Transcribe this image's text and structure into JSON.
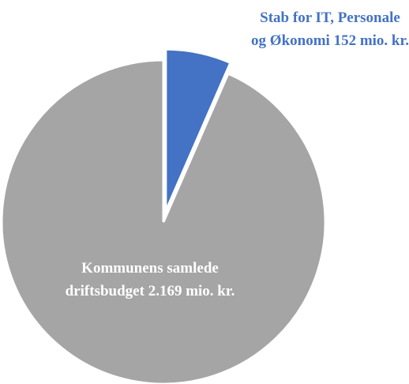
{
  "chart_data": {
    "type": "pie",
    "categories": [
      "Stab for IT, Personale og Økonomi",
      "Kommunens samlede driftsbudget"
    ],
    "values": [
      152,
      2169
    ],
    "value_labels": [
      "152 mio. kr.",
      "2.169 mio. kr."
    ],
    "colors": [
      "#4472c4",
      "#a5a5a5"
    ]
  }
}
